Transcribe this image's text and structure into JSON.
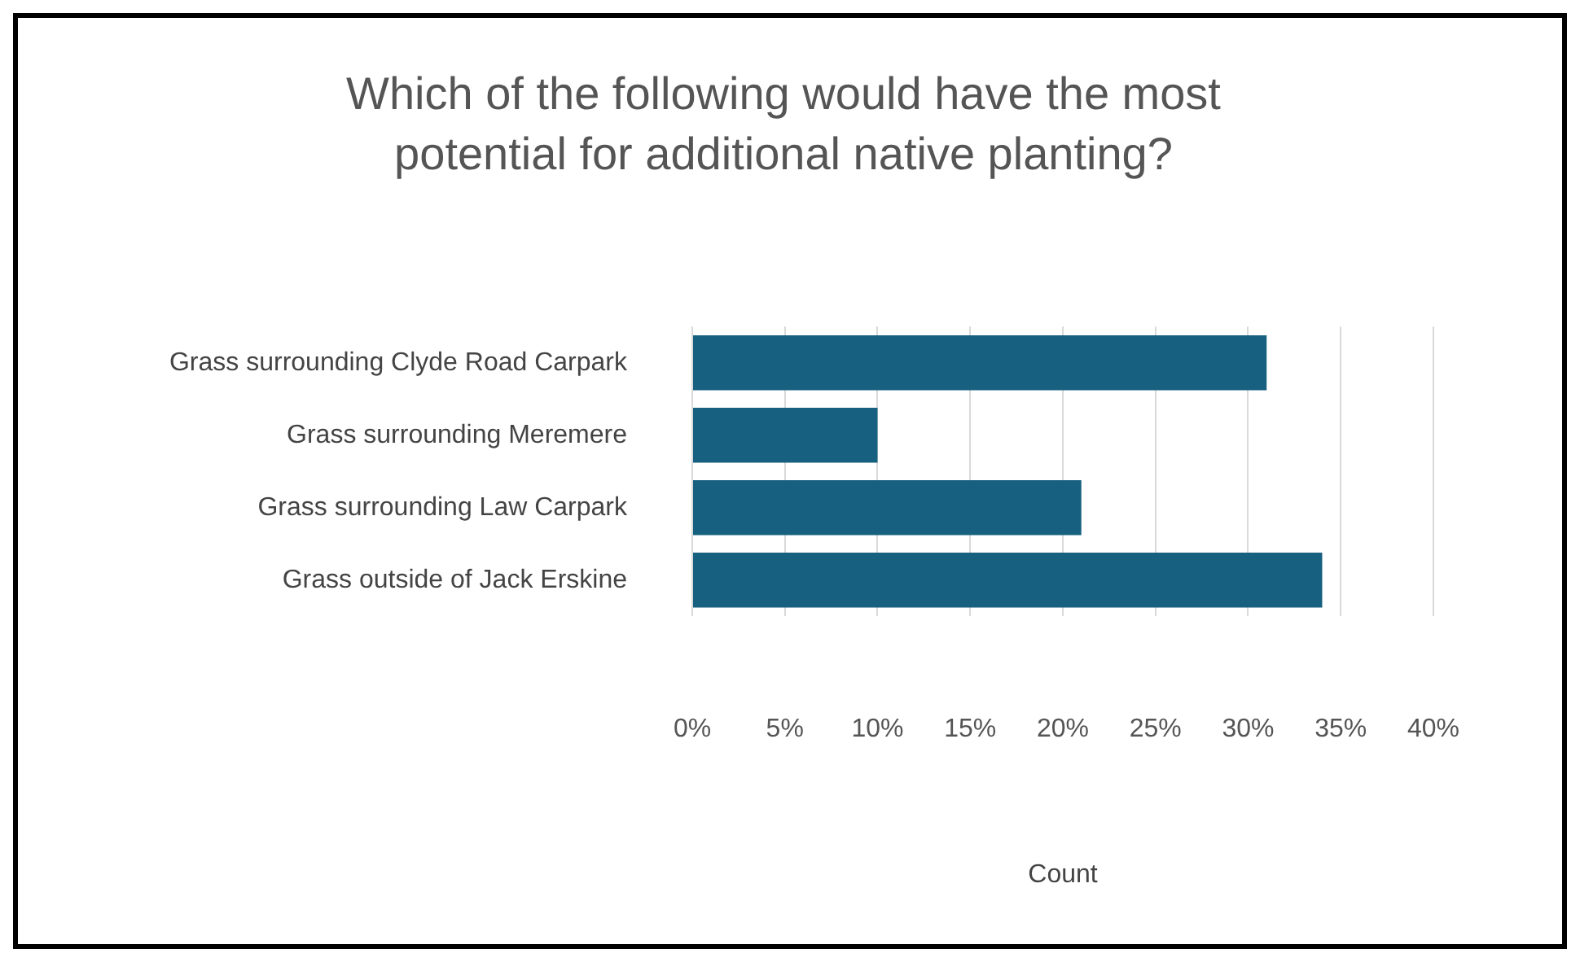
{
  "chart_data": {
    "type": "bar",
    "orientation": "horizontal",
    "title": "Which of the following would have the most potential for additional native planting?",
    "xlabel": "Count",
    "categories": [
      "Grass surrounding Clyde Road Carpark",
      "Grass surrounding Meremere",
      "Grass surrounding Law Carpark",
      "Grass outside of Jack Erskine"
    ],
    "values": [
      31,
      10,
      21,
      34
    ],
    "color": "#17607f",
    "xlim": [
      0,
      40
    ],
    "xticks": [
      {
        "value": 0,
        "label": "0%"
      },
      {
        "value": 5,
        "label": "5%"
      },
      {
        "value": 10,
        "label": "10%"
      },
      {
        "value": 15,
        "label": "15%"
      },
      {
        "value": 20,
        "label": "20%"
      },
      {
        "value": 25,
        "label": "25%"
      },
      {
        "value": 30,
        "label": "30%"
      },
      {
        "value": 35,
        "label": "35%"
      },
      {
        "value": 40,
        "label": "40%"
      }
    ],
    "grid": "x",
    "legend": false
  }
}
